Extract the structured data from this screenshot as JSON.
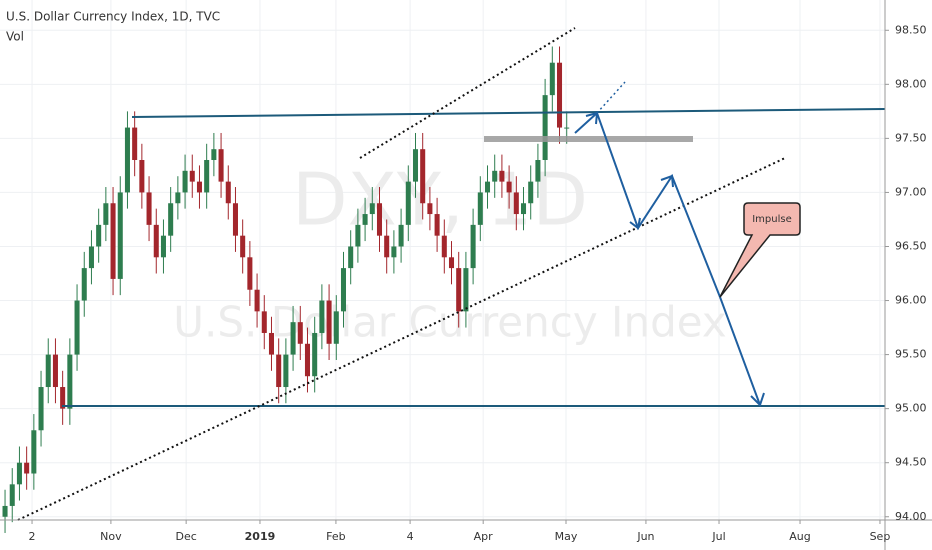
{
  "chart_data": {
    "type": "candlestick",
    "title": "U.S. Dollar Currency Index, 1D, TVC",
    "subtitle": "Vol",
    "watermark": "DXY, 1D",
    "watermark_subtitle": "U.S. Dollar Currency Index",
    "annotation": "Impulse",
    "up_color": "#2e7d4f",
    "down_color": "#a3262c",
    "x": [
      0,
      2,
      4,
      6,
      8,
      10,
      12,
      14,
      16,
      18,
      20,
      22,
      24,
      26,
      28,
      30,
      32,
      34,
      36,
      38,
      40,
      42,
      44,
      46,
      48,
      50,
      52,
      54,
      56,
      58,
      60,
      62,
      64,
      66,
      68,
      70,
      72,
      74,
      76,
      78,
      80,
      82,
      84,
      86,
      88,
      90,
      92,
      94,
      96,
      98,
      100,
      102,
      104,
      106,
      108,
      110,
      112,
      114,
      116,
      118,
      120,
      122,
      124,
      126,
      128,
      130,
      132,
      134,
      136,
      138,
      140,
      142,
      144,
      146,
      148,
      150,
      152,
      154,
      156
    ],
    "open": [
      94.0,
      94.1,
      94.3,
      94.5,
      94.4,
      94.8,
      95.2,
      95.5,
      95.2,
      95.0,
      95.5,
      96.0,
      96.3,
      96.5,
      96.7,
      96.9,
      96.2,
      97.0,
      97.6,
      97.3,
      97.0,
      96.7,
      96.4,
      96.6,
      96.9,
      97.0,
      97.2,
      97.1,
      97.0,
      97.3,
      97.4,
      97.1,
      96.9,
      96.6,
      96.4,
      96.1,
      95.9,
      95.7,
      95.5,
      95.2,
      95.5,
      95.8,
      95.6,
      95.3,
      95.7,
      96.0,
      95.6,
      95.9,
      96.3,
      96.5,
      96.7,
      96.8,
      96.9,
      96.6,
      96.4,
      96.5,
      96.7,
      97.1,
      97.4,
      96.9,
      96.8,
      96.6,
      96.4,
      96.3,
      95.9,
      96.3,
      96.7,
      97.0,
      97.1,
      97.2,
      97.1,
      97.0,
      96.8,
      96.9,
      97.1,
      97.3,
      97.9,
      98.2,
      97.6
    ],
    "high": [
      94.25,
      94.45,
      94.65,
      94.65,
      94.95,
      95.35,
      95.65,
      95.65,
      95.35,
      95.65,
      96.15,
      96.45,
      96.65,
      96.85,
      97.05,
      97.05,
      97.15,
      97.75,
      97.75,
      97.45,
      97.15,
      96.85,
      96.75,
      97.05,
      97.15,
      97.35,
      97.35,
      97.25,
      97.45,
      97.55,
      97.55,
      97.25,
      97.05,
      96.75,
      96.55,
      96.25,
      96.05,
      95.85,
      95.65,
      95.65,
      95.95,
      95.95,
      95.75,
      95.85,
      96.15,
      96.15,
      96.05,
      96.45,
      96.65,
      96.85,
      96.95,
      97.05,
      97.05,
      96.75,
      96.65,
      96.85,
      97.25,
      97.55,
      97.55,
      97.05,
      96.95,
      96.75,
      96.55,
      96.45,
      96.45,
      96.85,
      97.15,
      97.25,
      97.35,
      97.35,
      97.25,
      97.15,
      97.05,
      97.25,
      97.45,
      98.05,
      98.35,
      98.35,
      97.75
    ],
    "low": [
      93.85,
      93.95,
      94.15,
      94.25,
      94.25,
      94.65,
      95.05,
      95.05,
      94.85,
      94.85,
      95.35,
      95.85,
      96.15,
      96.35,
      96.55,
      96.05,
      96.05,
      96.85,
      97.15,
      96.85,
      96.55,
      96.25,
      96.25,
      96.45,
      96.75,
      96.85,
      96.95,
      96.85,
      96.85,
      97.15,
      96.95,
      96.75,
      96.45,
      96.25,
      95.95,
      95.75,
      95.55,
      95.35,
      95.05,
      95.05,
      95.35,
      95.45,
      95.15,
      95.15,
      95.55,
      95.45,
      95.45,
      95.75,
      96.15,
      96.35,
      96.55,
      96.65,
      96.45,
      96.25,
      96.25,
      96.35,
      96.55,
      96.95,
      96.75,
      96.65,
      96.45,
      96.25,
      96.15,
      95.75,
      95.75,
      96.15,
      96.55,
      96.85,
      96.95,
      96.95,
      96.85,
      96.65,
      96.65,
      96.75,
      96.95,
      97.15,
      97.75,
      97.45,
      97.45
    ],
    "close": [
      94.1,
      94.3,
      94.5,
      94.4,
      94.8,
      95.2,
      95.5,
      95.2,
      95.0,
      95.5,
      96.0,
      96.3,
      96.5,
      96.7,
      96.9,
      96.2,
      97.0,
      97.6,
      97.3,
      97.0,
      96.7,
      96.4,
      96.6,
      96.9,
      97.0,
      97.2,
      97.1,
      97.0,
      97.3,
      97.4,
      97.1,
      96.9,
      96.6,
      96.4,
      96.1,
      95.9,
      95.7,
      95.5,
      95.2,
      95.5,
      95.8,
      95.6,
      95.3,
      95.7,
      96.0,
      95.6,
      95.9,
      96.3,
      96.5,
      96.7,
      96.8,
      96.9,
      96.6,
      96.4,
      96.5,
      96.7,
      97.1,
      97.4,
      96.9,
      96.8,
      96.6,
      96.4,
      96.3,
      95.9,
      96.3,
      96.7,
      97.0,
      97.1,
      97.2,
      97.1,
      97.0,
      96.8,
      96.9,
      97.1,
      97.3,
      97.9,
      98.2,
      97.6,
      97.6
    ],
    "xlim": [
      -1.4,
      244.4
    ],
    "xticks": [
      {
        "value": 7.5,
        "label": "2"
      },
      {
        "value": 29.4,
        "label": "Nov"
      },
      {
        "value": 50.3,
        "label": "Dec"
      },
      {
        "value": 70.8,
        "label": "2019"
      },
      {
        "value": 91.9,
        "label": "Feb"
      },
      {
        "value": 112.5,
        "label": "4"
      },
      {
        "value": 132.8,
        "label": "Apr"
      },
      {
        "value": 155.8,
        "label": "May"
      },
      {
        "value": 178,
        "label": "Jun"
      },
      {
        "value": 198.3,
        "label": "Jul"
      },
      {
        "value": 220.8,
        "label": "Aug"
      },
      {
        "value": 243,
        "label": "Sep"
      }
    ],
    "ylim": [
      93.97,
      98.78
    ],
    "yticks": [
      {
        "value": 94,
        "label": "94.00"
      },
      {
        "value": 94.5,
        "label": "94.50"
      },
      {
        "value": 95,
        "label": "95.00"
      },
      {
        "value": 95.5,
        "label": "95.50"
      },
      {
        "value": 96,
        "label": "96.00"
      },
      {
        "value": 96.5,
        "label": "96.50"
      },
      {
        "value": 97,
        "label": "97.00"
      },
      {
        "value": 97.5,
        "label": "97.50"
      },
      {
        "value": 98,
        "label": "98.00"
      },
      {
        "value": 98.5,
        "label": "98.50"
      }
    ],
    "grid": true
  }
}
